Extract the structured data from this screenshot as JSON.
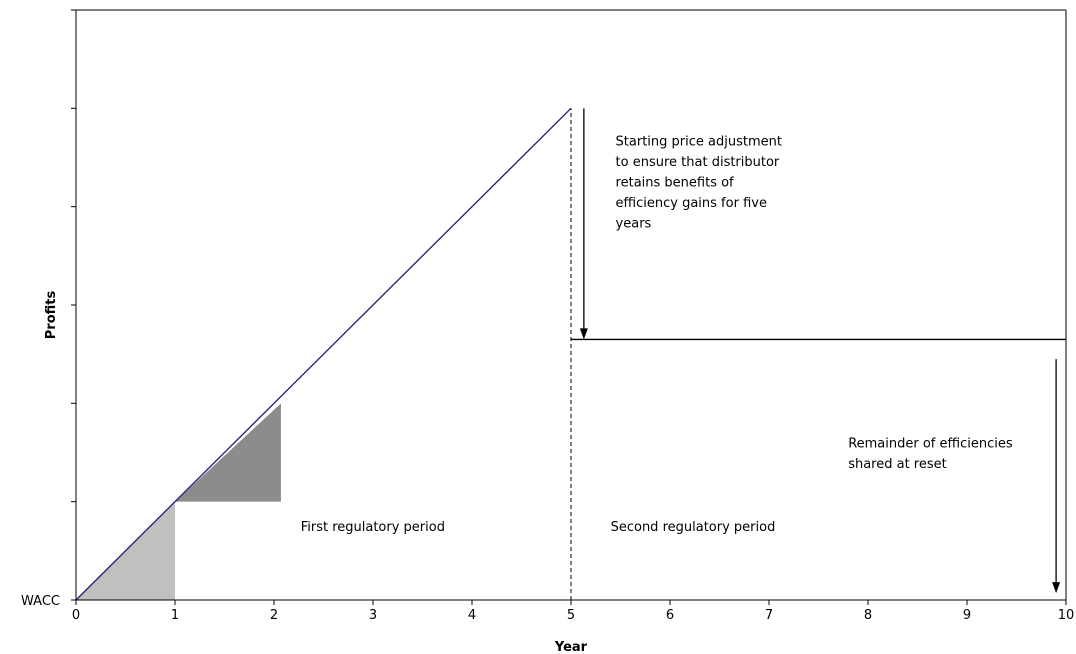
{
  "chart_data": {
    "type": "line",
    "xlabel": "Year",
    "ylabel": "Profits",
    "x_ticks": [
      "0",
      "1",
      "2",
      "3",
      "4",
      "5",
      "6",
      "7",
      "8",
      "9",
      "10"
    ],
    "y_baseline_label": "WACC",
    "xlim": [
      0,
      10
    ],
    "ylim": [
      0,
      6
    ],
    "y_tick_count": 7,
    "grid": false,
    "series": [
      {
        "x": [
          0,
          5
        ],
        "y": [
          0,
          5
        ],
        "color": "#1f1f7a",
        "style": "solid"
      },
      {
        "x": [
          5,
          10
        ],
        "y": [
          2.65,
          2.65
        ],
        "color": "#000000",
        "style": "solid"
      }
    ],
    "period_boundary": {
      "x": 5,
      "y_from": 0,
      "y_to": 5,
      "style": "dashed"
    },
    "shaded_triangles": [
      {
        "points": [
          [
            0,
            0
          ],
          [
            1,
            0
          ],
          [
            1,
            1
          ]
        ],
        "color": "#c0c0c0"
      },
      {
        "points": [
          [
            1,
            1
          ],
          [
            2.07,
            1
          ],
          [
            2.07,
            2
          ]
        ],
        "color": "#8c8c8c"
      }
    ],
    "arrows": [
      {
        "x": 5.13,
        "y_from": 5,
        "y_to": 2.65
      },
      {
        "x": 9.9,
        "y_from": 2.45,
        "y_to": 0.07
      }
    ],
    "annotations": [
      {
        "lines": [
          "Starting price adjustment",
          "to ensure that distributor",
          "retains benefits of",
          "efficiency gains for five",
          "years"
        ],
        "x": 5.45,
        "y": 4.62
      },
      {
        "lines": [
          "Remainder of efficiencies",
          "shared at reset"
        ],
        "x": 7.8,
        "y": 1.55
      },
      {
        "lines": [
          "First regulatory period"
        ],
        "x": 2.27,
        "y": 0.7
      },
      {
        "lines": [
          "Second  regulatory period"
        ],
        "x": 5.4,
        "y": 0.7
      }
    ]
  }
}
